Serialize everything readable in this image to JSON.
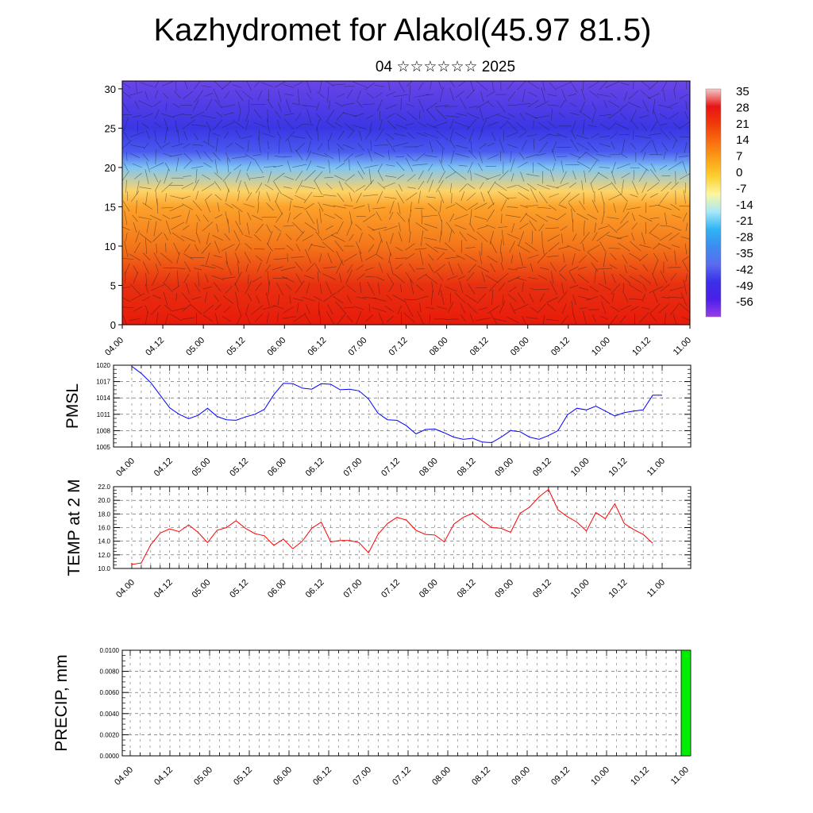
{
  "title": "Kazhydromet for Alakol(45.97 81.5)",
  "subtitle": "04 ☆☆☆☆☆☆ 2025",
  "time_labels": [
    "04.00",
    "04.12",
    "05.00",
    "05.12",
    "06.00",
    "06.12",
    "07.00",
    "07.12",
    "08.00",
    "08.12",
    "09.00",
    "09.12",
    "10.00",
    "10.12",
    "11.00"
  ],
  "chart_data": [
    {
      "type": "heatmap",
      "title": "",
      "ylim": [
        0,
        31
      ],
      "y_ticks": [
        "0",
        "5",
        "10",
        "15",
        "20",
        "25",
        "30"
      ],
      "colorbar_labels": [
        "35",
        "28",
        "21",
        "14",
        "7",
        "0",
        "-7",
        "-14",
        "-21",
        "-28",
        "-35",
        "-42",
        "-49",
        "-56"
      ],
      "colorbar_colors": [
        "#f4c8c8",
        "#e81414",
        "#f03a0a",
        "#f86e10",
        "#fca018",
        "#fcd030",
        "#fcf6a0",
        "#a8e8f8",
        "#30b4f4",
        "#3c8cf0",
        "#5a6cf0",
        "#3a30e8",
        "#4a20e8",
        "#9a3ce8"
      ],
      "profile_levels": [
        0,
        5,
        10,
        15,
        17,
        20,
        22,
        25,
        31
      ],
      "profile_colors": [
        "#e81a0a",
        "#e83010",
        "#f4761a",
        "#fca22a",
        "#fcd468",
        "#7ec4f4",
        "#4a5af0",
        "#3a36e4",
        "#6a44e8"
      ]
    },
    {
      "type": "line",
      "ylabel": "PMSL",
      "ylim": [
        1005,
        1020
      ],
      "y_ticks": [
        "1005",
        "1008",
        "1011",
        "1014",
        "1017",
        "1020"
      ],
      "color": "#0000ff",
      "x": [
        0,
        1,
        2,
        3,
        4,
        5,
        6,
        7,
        8,
        9,
        10,
        11,
        12,
        13,
        14,
        15,
        16,
        17,
        18,
        19,
        20,
        21,
        22,
        23,
        24,
        25,
        26,
        27,
        28,
        29,
        30,
        31,
        32,
        33,
        34,
        35,
        36,
        37,
        38,
        39,
        40,
        41,
        42,
        43,
        44,
        45,
        46,
        47,
        48,
        49,
        50,
        51,
        52,
        53,
        54,
        55,
        56
      ],
      "values": [
        1019.8,
        1018.5,
        1016.8,
        1014.5,
        1012.2,
        1011.0,
        1010.2,
        1010.8,
        1012.1,
        1010.6,
        1010.0,
        1009.9,
        1010.5,
        1011.0,
        1011.9,
        1014.6,
        1016.7,
        1016.6,
        1015.8,
        1015.6,
        1016.6,
        1016.5,
        1015.5,
        1015.6,
        1015.3,
        1013.8,
        1011.2,
        1010.0,
        1009.9,
        1008.9,
        1007.4,
        1008.2,
        1008.3,
        1007.6,
        1006.8,
        1006.4,
        1006.6,
        1005.9,
        1005.8,
        1006.8,
        1008.0,
        1007.8,
        1006.8,
        1006.4,
        1007.1,
        1008.0,
        1010.9,
        1012.1,
        1011.8,
        1012.5,
        1011.6,
        1010.7,
        1011.3,
        1011.6,
        1011.8,
        1014.5,
        1014.5
      ]
    },
    {
      "type": "line",
      "ylabel": "TEMP at 2 M",
      "ylim": [
        10.0,
        22.0
      ],
      "y_ticks": [
        "10.0",
        "12.0",
        "14.0",
        "16.0",
        "18.0",
        "20.0",
        "22.0"
      ],
      "color": "#ff0000",
      "x": [
        0,
        1,
        2,
        3,
        4,
        5,
        6,
        7,
        8,
        9,
        10,
        11,
        12,
        13,
        14,
        15,
        16,
        17,
        18,
        19,
        20,
        21,
        22,
        23,
        24,
        25,
        26,
        27,
        28,
        29,
        30,
        31,
        32,
        33,
        34,
        35,
        36,
        37,
        38,
        39,
        40,
        41,
        42,
        43,
        44,
        45,
        46,
        47,
        48,
        49,
        50,
        51,
        52,
        53,
        54,
        55
      ],
      "values": [
        10.6,
        10.8,
        13.5,
        15.2,
        15.8,
        15.4,
        16.4,
        15.3,
        13.8,
        15.6,
        16.0,
        17.0,
        15.9,
        15.1,
        14.8,
        13.4,
        14.3,
        12.9,
        14.0,
        15.9,
        16.8,
        13.9,
        14.1,
        14.1,
        13.8,
        12.3,
        15.0,
        16.6,
        17.5,
        17.1,
        15.6,
        15.0,
        14.9,
        13.9,
        16.5,
        17.5,
        18.1,
        17.0,
        16.0,
        15.9,
        15.3,
        18.1,
        19.0,
        20.5,
        21.6,
        18.6,
        17.6,
        16.8,
        15.5,
        18.2,
        17.3,
        19.5,
        16.6,
        15.7,
        15.0,
        13.7
      ]
    },
    {
      "type": "bar",
      "ylabel": "PRECIP, mm",
      "ylim": [
        0.0,
        0.01
      ],
      "y_ticks": [
        "0.0000",
        "0.0020",
        "0.0040",
        "0.0060",
        "0.0080",
        "0.0100"
      ],
      "color": "#00ee00",
      "x": [
        56
      ],
      "values": [
        0.01
      ]
    }
  ]
}
